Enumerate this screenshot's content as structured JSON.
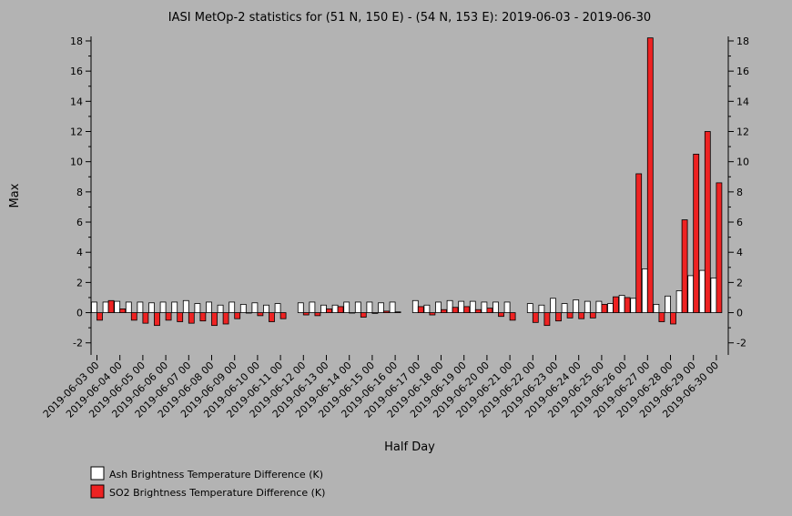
{
  "chart_data": {
    "type": "bar",
    "title": "IASI MetOp-2 statistics for (51 N, 150 E) - (54 N, 153 E): 2019-06-03 - 2019-06-30",
    "xlabel": "Half Day",
    "ylabel": "Max",
    "ylim": [
      -2.8,
      18.3
    ],
    "yticks": [
      -2,
      0,
      2,
      4,
      6,
      8,
      10,
      12,
      14,
      16,
      18
    ],
    "grid": false,
    "legend_position": "bottom-left",
    "categories": [
      "2019-06-03 00",
      "2019-06-03 12",
      "2019-06-04 00",
      "2019-06-04 12",
      "2019-06-05 00",
      "2019-06-05 12",
      "2019-06-06 00",
      "2019-06-06 12",
      "2019-06-07 00",
      "2019-06-07 12",
      "2019-06-08 00",
      "2019-06-08 12",
      "2019-06-09 00",
      "2019-06-09 12",
      "2019-06-10 00",
      "2019-06-10 12",
      "2019-06-11 00",
      "2019-06-11 12",
      "2019-06-12 00",
      "2019-06-12 12",
      "2019-06-13 00",
      "2019-06-13 12",
      "2019-06-14 00",
      "2019-06-14 12",
      "2019-06-15 00",
      "2019-06-15 12",
      "2019-06-16 00",
      "2019-06-16 12",
      "2019-06-17 00",
      "2019-06-17 12",
      "2019-06-18 00",
      "2019-06-18 12",
      "2019-06-19 00",
      "2019-06-19 12",
      "2019-06-20 00",
      "2019-06-20 12",
      "2019-06-21 00",
      "2019-06-21 12",
      "2019-06-22 00",
      "2019-06-22 12",
      "2019-06-23 00",
      "2019-06-23 12",
      "2019-06-24 00",
      "2019-06-24 12",
      "2019-06-25 00",
      "2019-06-25 12",
      "2019-06-26 00",
      "2019-06-26 12",
      "2019-06-27 00",
      "2019-06-27 12",
      "2019-06-28 00",
      "2019-06-28 12",
      "2019-06-29 00",
      "2019-06-29 12",
      "2019-06-30 00"
    ],
    "tick_labels": [
      "2019-06-03 00",
      "2019-06-04 00",
      "2019-06-05 00",
      "2019-06-06 00",
      "2019-06-07 00",
      "2019-06-08 00",
      "2019-06-09 00",
      "2019-06-10 00",
      "2019-06-11 00",
      "2019-06-12 00",
      "2019-06-13 00",
      "2019-06-14 00",
      "2019-06-15 00",
      "2019-06-16 00",
      "2019-06-17 00",
      "2019-06-18 00",
      "2019-06-19 00",
      "2019-06-20 00",
      "2019-06-21 00",
      "2019-06-22 00",
      "2019-06-23 00",
      "2019-06-24 00",
      "2019-06-25 00",
      "2019-06-26 00",
      "2019-06-27 00",
      "2019-06-28 00",
      "2019-06-29 00",
      "2019-06-30 00"
    ],
    "series": [
      {
        "name": "Ash Brightness Temperature Difference (K)",
        "color": "#ffffff",
        "values": [
          0.7,
          0.7,
          0.75,
          0.7,
          0.7,
          0.65,
          0.7,
          0.7,
          0.8,
          0.6,
          0.7,
          0.5,
          0.7,
          0.55,
          0.65,
          0.5,
          0.6,
          null,
          0.65,
          0.7,
          0.5,
          0.5,
          0.7,
          0.7,
          0.7,
          0.65,
          0.7,
          null,
          0.8,
          0.5,
          0.7,
          0.8,
          0.75,
          0.75,
          0.7,
          0.7,
          0.7,
          null,
          0.6,
          0.5,
          0.95,
          0.6,
          0.85,
          0.75,
          0.75,
          0.6,
          1.15,
          0.95,
          2.9,
          0.55,
          1.1,
          1.45,
          2.45,
          2.8,
          2.3
        ]
      },
      {
        "name": "SO2 Brightness Temperature Difference (K)",
        "color": "#ee2222",
        "values": [
          -0.5,
          0.8,
          0.25,
          -0.5,
          -0.7,
          -0.85,
          -0.5,
          -0.6,
          -0.7,
          -0.55,
          -0.85,
          -0.75,
          -0.4,
          0.0,
          -0.2,
          -0.6,
          -0.4,
          null,
          -0.15,
          -0.2,
          0.25,
          0.4,
          0.0,
          -0.3,
          -0.05,
          0.1,
          0.05,
          null,
          0.4,
          -0.15,
          0.2,
          0.35,
          0.4,
          0.2,
          0.3,
          -0.25,
          -0.5,
          null,
          -0.65,
          -0.85,
          -0.55,
          -0.35,
          -0.4,
          -0.35,
          0.55,
          1.05,
          1.0,
          9.2,
          18.2,
          -0.6,
          -0.75,
          6.15,
          10.5,
          12.0,
          8.6
        ]
      }
    ]
  }
}
